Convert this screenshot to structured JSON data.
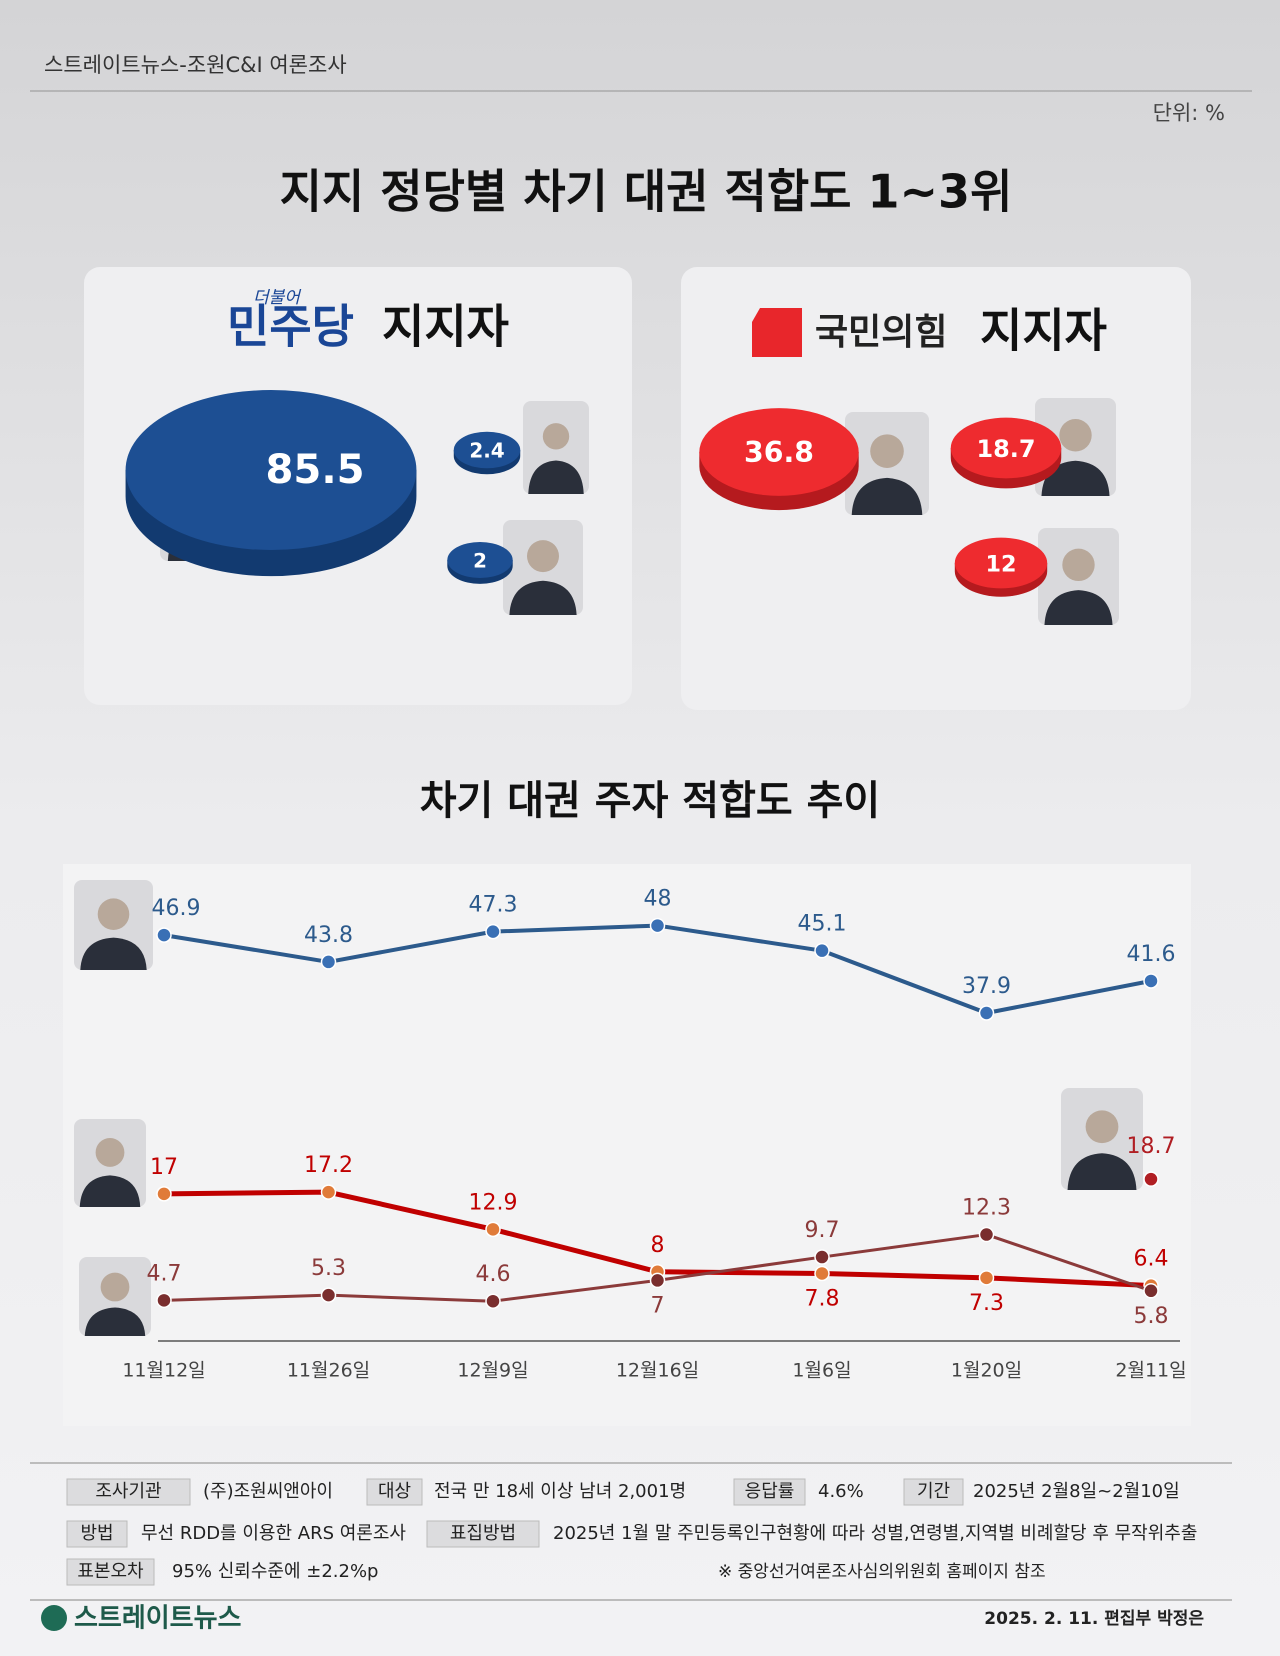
{
  "header": {
    "source": "스트레이트뉴스-조원C&I 여론조사",
    "unit": "단위: %"
  },
  "title": "지지 정당별 차기 대권  적합도 1~3위",
  "chart_data": [
    {
      "type": "bubble",
      "party_prefix": "더불어",
      "party": "민주당",
      "title": "지지자",
      "color": "#1d4f93",
      "side_color": "#123a70",
      "values": [
        85.5,
        2.4,
        2.0
      ]
    },
    {
      "type": "bubble",
      "party": "국민의힘",
      "title": "지지자",
      "color": "#ee2b2f",
      "side_color": "#b51a1e",
      "values": [
        36.8,
        18.7,
        12.0
      ]
    },
    {
      "type": "line",
      "title": "차기 대권 주자 적합도 추이",
      "categories": [
        "11월12일",
        "11월26일",
        "12월9일",
        "12월16일",
        "1월6일",
        "1월20일",
        "2월11일"
      ],
      "ylim": [
        0,
        55
      ],
      "series": [
        {
          "color": "#2c5a8c",
          "marker_color": "#3a70b5",
          "values": [
            46.9,
            43.8,
            47.3,
            48.0,
            45.1,
            37.9,
            41.6
          ]
        },
        {
          "color": "#c00000",
          "marker_color": "#e07b39",
          "values": [
            17.0,
            17.2,
            12.9,
            8.0,
            7.8,
            7.3,
            6.4
          ]
        },
        {
          "color": "#8b3a3a",
          "marker_color": "#7a2e2e",
          "values": [
            4.7,
            5.3,
            4.6,
            7.0,
            9.7,
            12.3,
            5.8
          ]
        },
        {
          "color": "#b01e23",
          "marker_color": "#b01e23",
          "values": [
            null,
            null,
            null,
            null,
            null,
            null,
            18.7
          ]
        }
      ]
    }
  ],
  "footer": {
    "rows": [
      [
        {
          "label": "조사기관",
          "value": "(주)조원씨앤아이"
        },
        {
          "label": "대상",
          "value": "전국 만 18세 이상 남녀 2,001명"
        },
        {
          "label": "응답률",
          "value": "4.6%"
        },
        {
          "label": "기간",
          "value": "2025년 2월8일~2월10일"
        }
      ],
      [
        {
          "label": "방법",
          "value": "무선 RDD를 이용한 ARS 여론조사"
        },
        {
          "label": "표집방법",
          "value": "2025년 1월 말 주민등록인구현황에 따라 성별,연령별,지역별 비례할당 후 무작위추출"
        }
      ],
      [
        {
          "label": "표본오차",
          "value": "95% 신뢰수준에 ±2.2%p"
        }
      ]
    ],
    "note": "※ 중앙선거여론조사심의위원회 홈페이지 참조"
  },
  "credit": {
    "logo": "스트레이트뉴스",
    "byline": "2025. 2. 11. 편집부 박정은"
  }
}
